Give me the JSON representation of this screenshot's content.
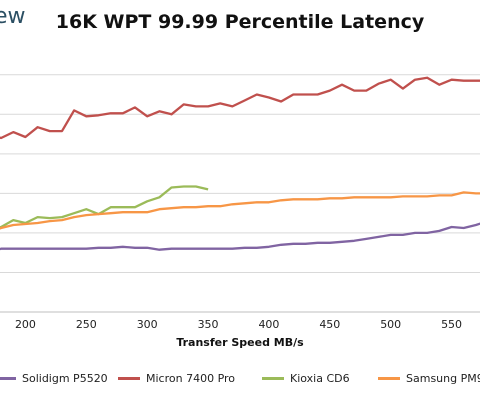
{
  "brand": "ew",
  "chart_data": {
    "type": "line",
    "title": "16K WPT 99.99 Percentile Latency",
    "xlabel": "Transfer Speed MB/s",
    "ylabel": "",
    "xlim": [
      175,
      575
    ],
    "ylim": [
      0,
      13
    ],
    "x_ticks": [
      200,
      250,
      300,
      350,
      400,
      450,
      500,
      550
    ],
    "tick_labels": [
      "200",
      "250",
      "300",
      "350",
      "400",
      "450",
      "500",
      "550"
    ],
    "grid": true,
    "legend": "bottom",
    "series": [
      {
        "name": "Solidigm P5520",
        "color": "#8064a2",
        "x": [
          175,
          180,
          190,
          200,
          210,
          220,
          230,
          240,
          250,
          260,
          270,
          280,
          290,
          300,
          310,
          320,
          330,
          340,
          350,
          360,
          370,
          380,
          390,
          400,
          410,
          420,
          430,
          440,
          450,
          460,
          470,
          480,
          490,
          500,
          510,
          520,
          530,
          540,
          550,
          560,
          570,
          575
        ],
        "y": [
          3.1,
          3.2,
          3.2,
          3.2,
          3.2,
          3.2,
          3.2,
          3.2,
          3.2,
          3.25,
          3.25,
          3.3,
          3.25,
          3.25,
          3.15,
          3.2,
          3.2,
          3.2,
          3.2,
          3.2,
          3.2,
          3.25,
          3.25,
          3.3,
          3.4,
          3.45,
          3.45,
          3.5,
          3.5,
          3.55,
          3.6,
          3.7,
          3.8,
          3.9,
          3.9,
          4.0,
          4.0,
          4.1,
          4.3,
          4.25,
          4.4,
          4.5
        ]
      },
      {
        "name": "Micron 7400 Pro",
        "color": "#c0504d",
        "x": [
          175,
          180,
          190,
          200,
          210,
          220,
          230,
          240,
          250,
          260,
          270,
          280,
          290,
          300,
          310,
          320,
          330,
          340,
          350,
          360,
          370,
          380,
          390,
          400,
          410,
          420,
          430,
          440,
          450,
          460,
          470,
          480,
          490,
          500,
          510,
          520,
          530,
          540,
          550,
          560,
          570,
          575
        ],
        "y": [
          8.9,
          8.8,
          9.1,
          8.85,
          9.35,
          9.15,
          9.15,
          10.2,
          9.9,
          9.95,
          10.05,
          10.05,
          10.35,
          9.9,
          10.15,
          10.0,
          10.5,
          10.4,
          10.4,
          10.55,
          10.4,
          10.7,
          11.0,
          10.85,
          10.65,
          11.0,
          11.0,
          11.0,
          11.2,
          11.5,
          11.2,
          11.2,
          11.55,
          11.75,
          11.3,
          11.75,
          11.85,
          11.5,
          11.75,
          11.7,
          11.7,
          11.7
        ]
      },
      {
        "name": "Kioxia CD6",
        "color": "#9bbb59",
        "x": [
          175,
          180,
          190,
          200,
          210,
          220,
          230,
          240,
          250,
          260,
          270,
          280,
          290,
          300,
          310,
          320,
          330,
          340,
          350
        ],
        "y": [
          4.25,
          4.3,
          4.65,
          4.5,
          4.8,
          4.75,
          4.8,
          5.0,
          5.2,
          4.95,
          5.3,
          5.3,
          5.3,
          5.6,
          5.8,
          6.3,
          6.35,
          6.35,
          6.2
        ]
      },
      {
        "name": "Samsung PM9",
        "color": "#f79646",
        "x": [
          175,
          180,
          190,
          200,
          210,
          220,
          230,
          240,
          250,
          260,
          270,
          280,
          290,
          300,
          310,
          320,
          330,
          340,
          350,
          360,
          370,
          380,
          390,
          400,
          410,
          420,
          430,
          440,
          450,
          460,
          470,
          480,
          490,
          500,
          510,
          520,
          530,
          540,
          550,
          560,
          570,
          575
        ],
        "y": [
          4.15,
          4.25,
          4.4,
          4.45,
          4.5,
          4.6,
          4.65,
          4.8,
          4.9,
          4.95,
          5.0,
          5.05,
          5.05,
          5.05,
          5.2,
          5.25,
          5.3,
          5.3,
          5.35,
          5.35,
          5.45,
          5.5,
          5.55,
          5.55,
          5.65,
          5.7,
          5.7,
          5.7,
          5.75,
          5.75,
          5.8,
          5.8,
          5.8,
          5.8,
          5.85,
          5.85,
          5.85,
          5.9,
          5.9,
          6.05,
          6.0,
          6.0
        ]
      }
    ]
  }
}
